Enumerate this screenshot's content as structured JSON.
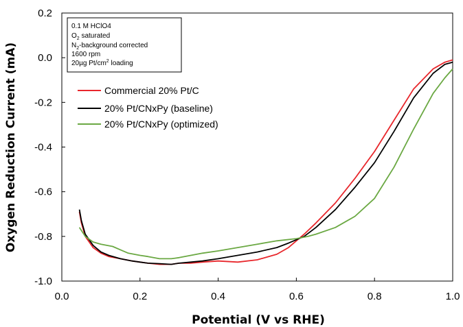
{
  "chart_data": {
    "type": "line",
    "xlabel": "Potential  (V vs RHE)",
    "ylabel": "Oxygen Reduction Current (mA)",
    "xlim": [
      0.0,
      1.0
    ],
    "ylim": [
      -1.0,
      0.2
    ],
    "x_ticks": [
      "0.0",
      "0.2",
      "0.4",
      "0.6",
      "0.8",
      "1.0"
    ],
    "y_ticks": [
      "0.2",
      "0.0",
      "-0.2",
      "-0.4",
      "-0.6",
      "-0.8",
      "-1.0"
    ],
    "conditions": {
      "line1": "0.1 M HClO4",
      "line2_main": "O",
      "line2_sub": "2",
      "line2_rest": " saturated",
      "line3_main": "N",
      "line3_sub": "2",
      "line3_rest": "-background corrected",
      "line4": "1600 rpm",
      "line5_main": "20µg Pt/cm",
      "line5_sup": "2",
      "line5_rest": " loading"
    },
    "legend_position": "upper-left",
    "grid": false,
    "series": [
      {
        "name": "Commercial 20% Pt/C",
        "color": "#e8262b",
        "points": [
          [
            0.045,
            -0.69
          ],
          [
            0.05,
            -0.74
          ],
          [
            0.06,
            -0.8
          ],
          [
            0.08,
            -0.85
          ],
          [
            0.1,
            -0.875
          ],
          [
            0.12,
            -0.89
          ],
          [
            0.15,
            -0.9
          ],
          [
            0.18,
            -0.91
          ],
          [
            0.2,
            -0.915
          ],
          [
            0.22,
            -0.92
          ],
          [
            0.25,
            -0.925
          ],
          [
            0.28,
            -0.925
          ],
          [
            0.3,
            -0.92
          ],
          [
            0.33,
            -0.92
          ],
          [
            0.36,
            -0.915
          ],
          [
            0.4,
            -0.91
          ],
          [
            0.45,
            -0.915
          ],
          [
            0.5,
            -0.905
          ],
          [
            0.55,
            -0.88
          ],
          [
            0.58,
            -0.85
          ],
          [
            0.6,
            -0.82
          ],
          [
            0.62,
            -0.79
          ],
          [
            0.65,
            -0.74
          ],
          [
            0.7,
            -0.65
          ],
          [
            0.75,
            -0.54
          ],
          [
            0.8,
            -0.42
          ],
          [
            0.85,
            -0.28
          ],
          [
            0.9,
            -0.14
          ],
          [
            0.95,
            -0.05
          ],
          [
            0.98,
            -0.02
          ],
          [
            1.0,
            -0.01
          ]
        ]
      },
      {
        "name": "20% Pt/CNxPy (baseline)",
        "color": "#000000",
        "points": [
          [
            0.045,
            -0.68
          ],
          [
            0.05,
            -0.73
          ],
          [
            0.06,
            -0.79
          ],
          [
            0.08,
            -0.84
          ],
          [
            0.1,
            -0.87
          ],
          [
            0.12,
            -0.885
          ],
          [
            0.15,
            -0.9
          ],
          [
            0.18,
            -0.91
          ],
          [
            0.2,
            -0.915
          ],
          [
            0.22,
            -0.92
          ],
          [
            0.25,
            -0.922
          ],
          [
            0.28,
            -0.925
          ],
          [
            0.3,
            -0.92
          ],
          [
            0.33,
            -0.915
          ],
          [
            0.36,
            -0.91
          ],
          [
            0.4,
            -0.9
          ],
          [
            0.45,
            -0.885
          ],
          [
            0.5,
            -0.87
          ],
          [
            0.55,
            -0.85
          ],
          [
            0.58,
            -0.83
          ],
          [
            0.6,
            -0.815
          ],
          [
            0.62,
            -0.8
          ],
          [
            0.65,
            -0.76
          ],
          [
            0.7,
            -0.68
          ],
          [
            0.75,
            -0.58
          ],
          [
            0.8,
            -0.47
          ],
          [
            0.85,
            -0.33
          ],
          [
            0.9,
            -0.18
          ],
          [
            0.95,
            -0.07
          ],
          [
            0.98,
            -0.03
          ],
          [
            1.0,
            -0.02
          ]
        ]
      },
      {
        "name": "20% Pt/CNxPy (optimized)",
        "color": "#6aa842",
        "points": [
          [
            0.045,
            -0.76
          ],
          [
            0.06,
            -0.8
          ],
          [
            0.08,
            -0.825
          ],
          [
            0.1,
            -0.835
          ],
          [
            0.13,
            -0.845
          ],
          [
            0.15,
            -0.86
          ],
          [
            0.17,
            -0.875
          ],
          [
            0.2,
            -0.885
          ],
          [
            0.22,
            -0.89
          ],
          [
            0.25,
            -0.9
          ],
          [
            0.28,
            -0.9
          ],
          [
            0.3,
            -0.895
          ],
          [
            0.33,
            -0.885
          ],
          [
            0.36,
            -0.875
          ],
          [
            0.4,
            -0.865
          ],
          [
            0.45,
            -0.85
          ],
          [
            0.5,
            -0.835
          ],
          [
            0.55,
            -0.82
          ],
          [
            0.6,
            -0.81
          ],
          [
            0.63,
            -0.8
          ],
          [
            0.65,
            -0.79
          ],
          [
            0.7,
            -0.76
          ],
          [
            0.75,
            -0.71
          ],
          [
            0.8,
            -0.63
          ],
          [
            0.85,
            -0.49
          ],
          [
            0.9,
            -0.32
          ],
          [
            0.95,
            -0.16
          ],
          [
            0.98,
            -0.09
          ],
          [
            1.0,
            -0.05
          ]
        ]
      }
    ]
  }
}
